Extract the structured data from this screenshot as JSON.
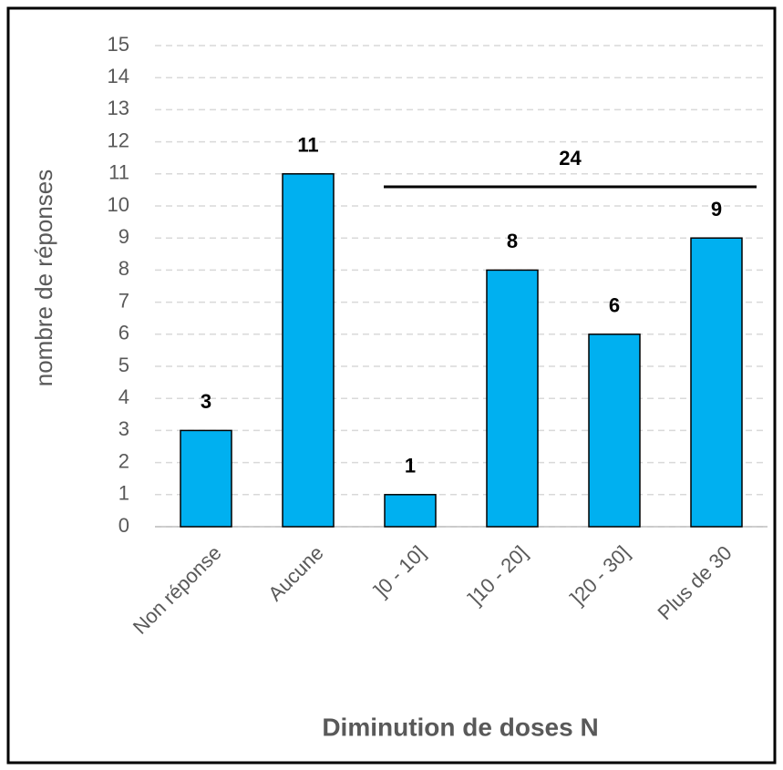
{
  "chart_data": {
    "type": "bar",
    "categories": [
      "Non réponse",
      "Aucune",
      "]0 - 10]",
      "]10 - 20]",
      "]20 - 30]",
      "Plus de 30"
    ],
    "values": [
      3,
      11,
      1,
      8,
      6,
      9
    ],
    "color": "#00b0f0",
    "ylim": [
      0,
      15
    ],
    "yticks": [
      0,
      1,
      2,
      3,
      4,
      5,
      6,
      7,
      8,
      9,
      10,
      11,
      12,
      13,
      14,
      15
    ],
    "grid": true,
    "xlabel": "Diminution de doses N",
    "ylabel": "nombre de réponses",
    "annotation": "24"
  }
}
